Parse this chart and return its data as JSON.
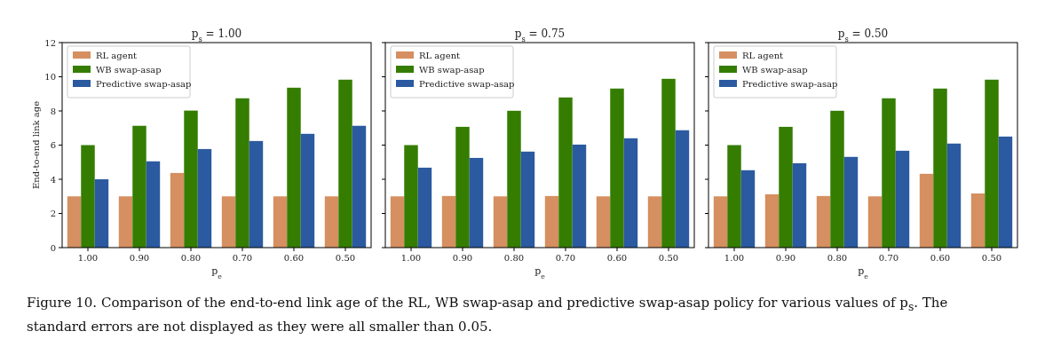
{
  "chart_data": [
    {
      "type": "bar",
      "title": "p$_{s}$ = 1.00",
      "xlabel": "p$_{e}$",
      "ylabel": "End-to-end link age",
      "categories": [
        "1.00",
        "0.90",
        "0.80",
        "0.70",
        "0.60",
        "0.50"
      ],
      "ylim": [
        0,
        12
      ],
      "yticks": [
        0,
        2,
        4,
        6,
        8,
        10,
        12
      ],
      "legend": "top left",
      "grid": false,
      "series": [
        {
          "name": "RL agent",
          "color": "#d58f60",
          "values": [
            3,
            3,
            4.37,
            3,
            3,
            3
          ]
        },
        {
          "name": "WB swap-asap",
          "color": "#347d00",
          "values": [
            6,
            7.13,
            8.02,
            8.74,
            9.36,
            9.83
          ]
        },
        {
          "name": "Predictive swap-asap",
          "color": "#2b5aa0",
          "values": [
            4.0,
            5.05,
            5.77,
            6.24,
            6.66,
            7.13
          ]
        }
      ],
      "annotations": [
        "Figure 10. Comparison of the end-to-end link age of the RL, WB swap-asap and predictive swap-asap policy for various values of p$_{s}$. The standard errors are not displayed as they were all smaller than 0.05."
      ]
    },
    {
      "type": "bar",
      "title": "p$_{s}$ = 0.75",
      "xlabel": "p$_{e}$",
      "categories": [
        "1.00",
        "0.90",
        "0.80",
        "0.70",
        "0.60",
        "0.50"
      ],
      "ylim": [
        0,
        12
      ],
      "yticks": [
        0,
        2,
        4,
        6,
        8,
        10,
        12
      ],
      "tick_labels": "x",
      "legend": "top left",
      "grid": false,
      "series": [
        {
          "name": "RL agent",
          "color": "#d58f60",
          "values": [
            3,
            3.02,
            3,
            3.02,
            3,
            3
          ]
        },
        {
          "name": "WB swap-asap",
          "color": "#347d00",
          "values": [
            6,
            7.07,
            8.01,
            8.79,
            9.31,
            9.88
          ]
        },
        {
          "name": "Predictive swap-asap",
          "color": "#2b5aa0",
          "values": [
            4.68,
            5.25,
            5.62,
            6.03,
            6.4,
            6.87
          ]
        }
      ]
    },
    {
      "type": "bar",
      "title": "p$_{s}$ = 0.50",
      "xlabel": "p$_{e}$",
      "categories": [
        "1.00",
        "0.90",
        "0.80",
        "0.70",
        "0.60",
        "0.50"
      ],
      "ylim": [
        0,
        12
      ],
      "yticks": [
        0,
        2,
        4,
        6,
        8,
        10,
        12
      ],
      "tick_labels": "x",
      "legend": "top left",
      "grid": false,
      "series": [
        {
          "name": "RL agent",
          "color": "#d58f60",
          "values": [
            3,
            3.12,
            3.02,
            3,
            4.32,
            3.17
          ]
        },
        {
          "name": "WB swap-asap",
          "color": "#347d00",
          "values": [
            6,
            7.07,
            8.01,
            8.74,
            9.31,
            9.83
          ]
        },
        {
          "name": "Predictive swap-asap",
          "color": "#2b5aa0",
          "values": [
            4.53,
            4.94,
            5.31,
            5.67,
            6.09,
            6.5
          ]
        }
      ]
    }
  ]
}
